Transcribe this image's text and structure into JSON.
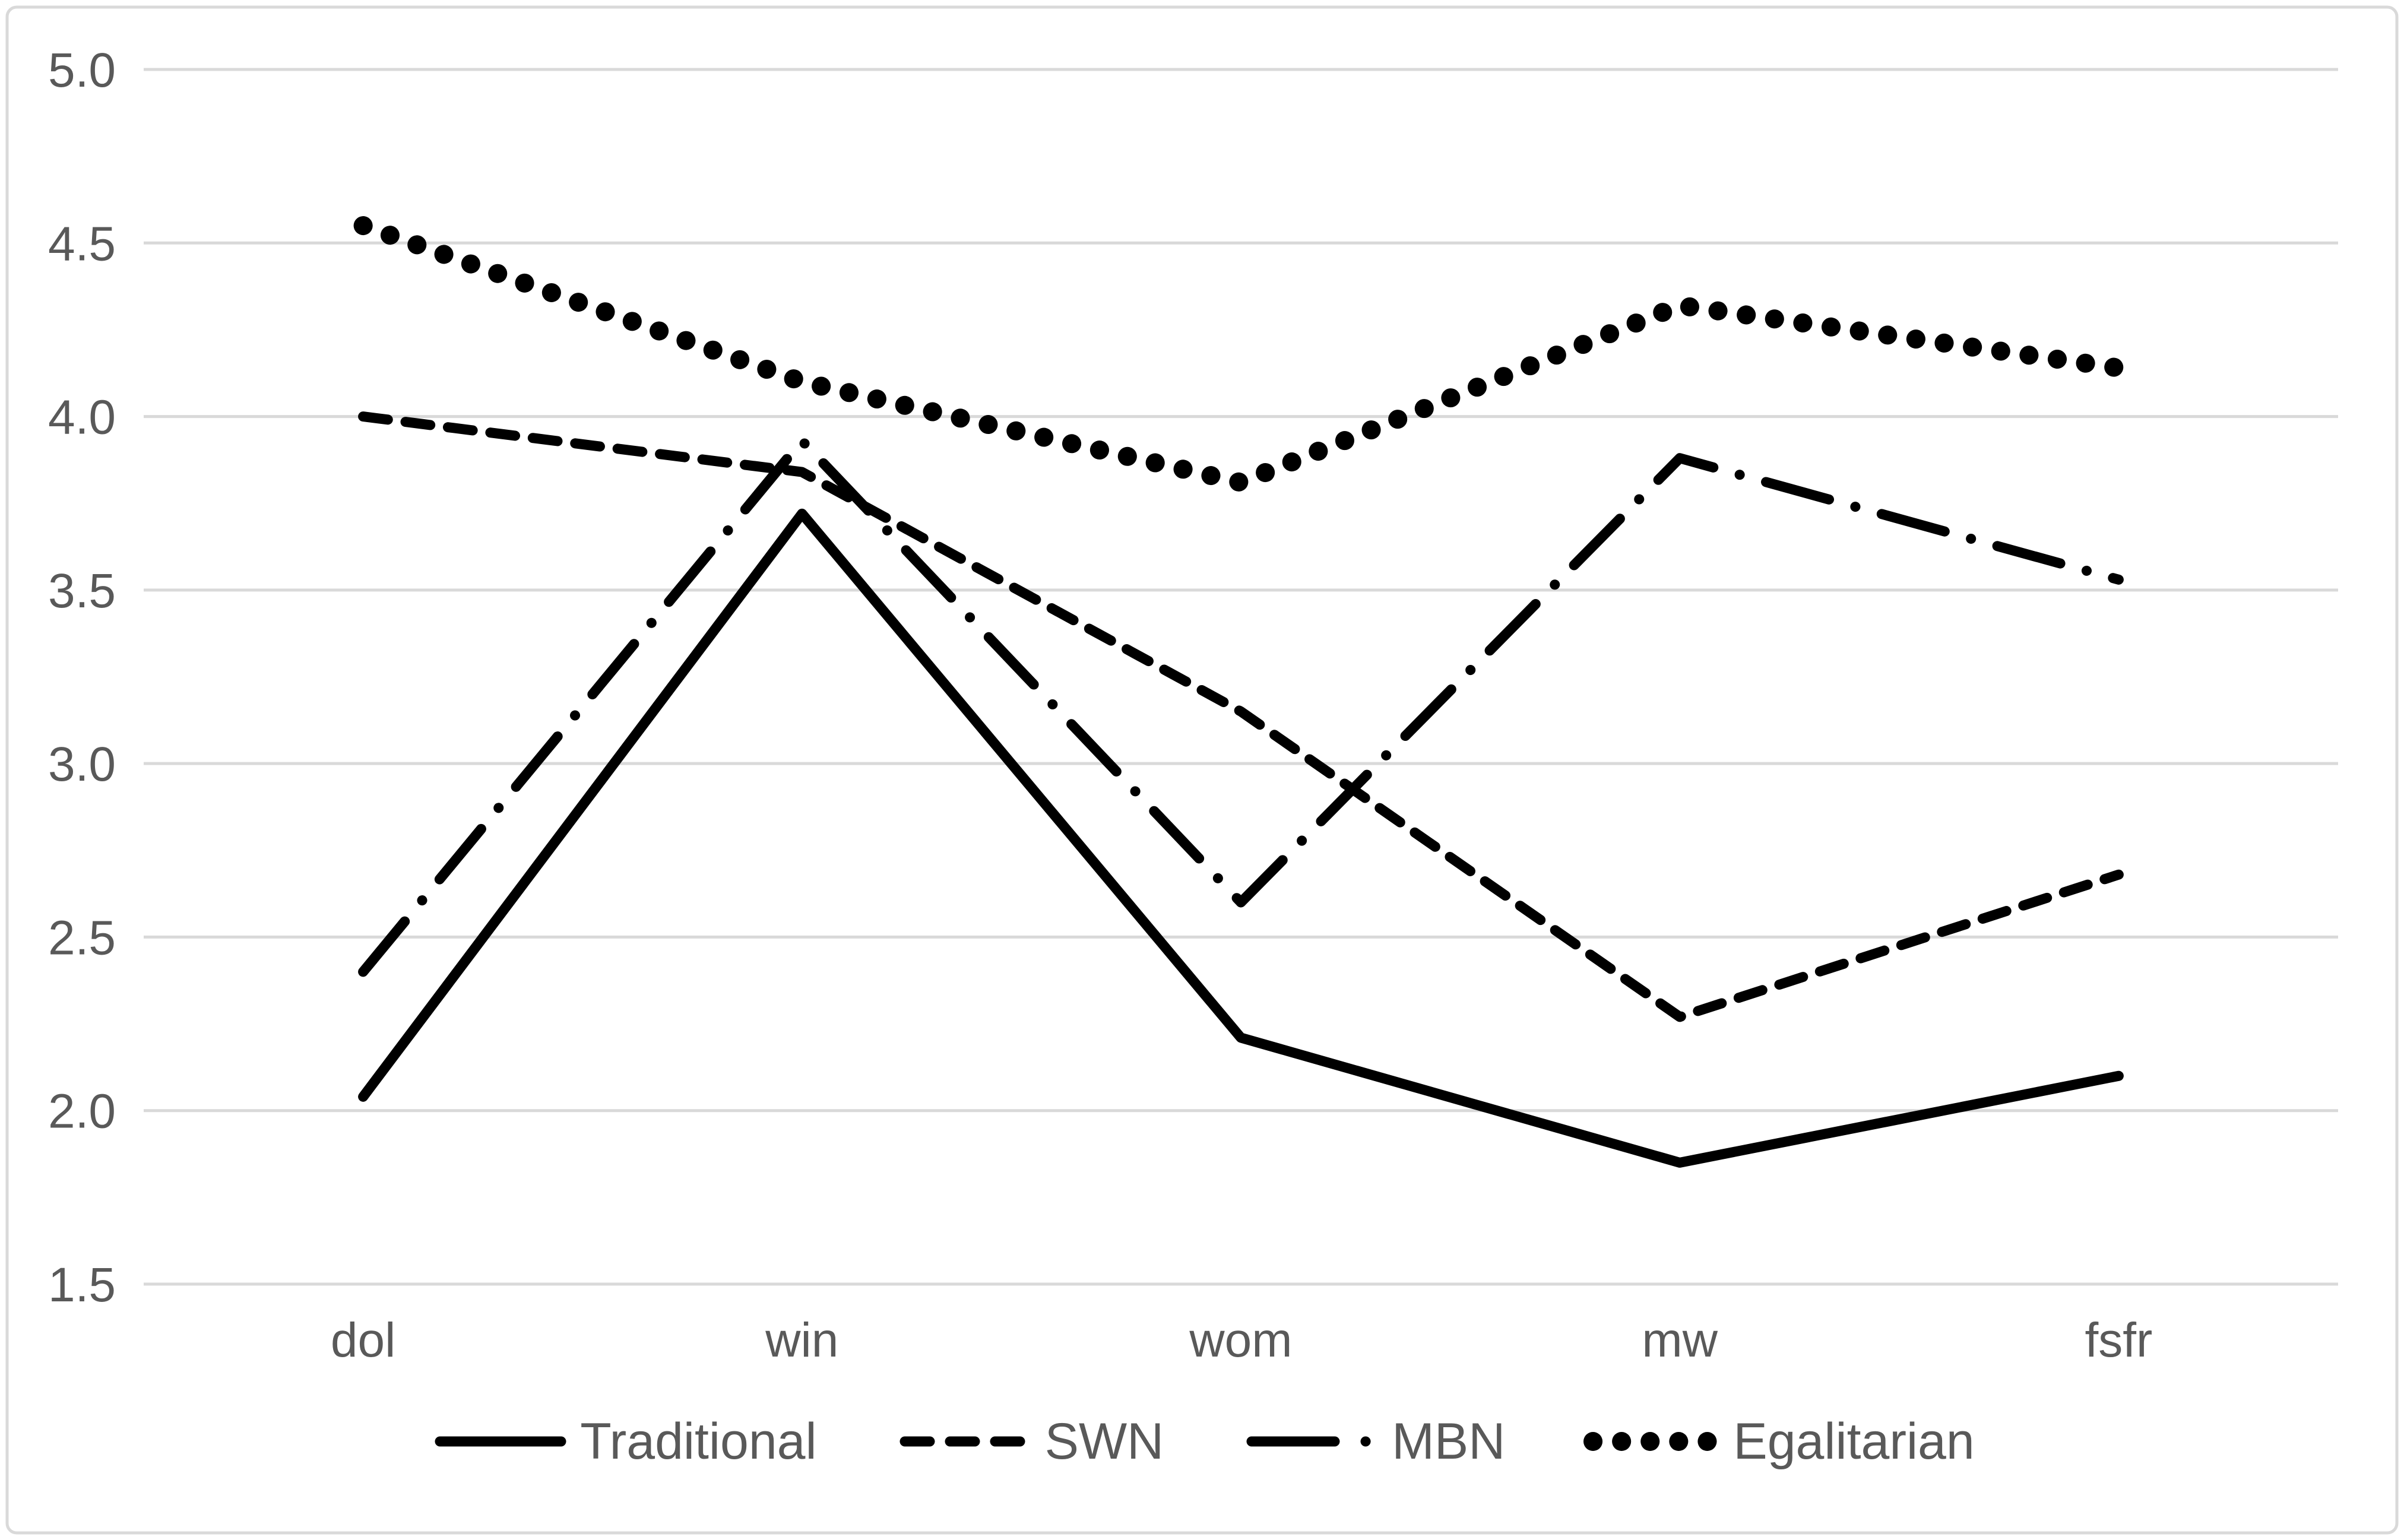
{
  "chart_data": {
    "type": "line",
    "title": "",
    "xlabel": "",
    "ylabel": "",
    "categories": [
      "dol",
      "win",
      "wom",
      "mw",
      "fsfr"
    ],
    "series": [
      {
        "name": "Traditional",
        "line_style": "solid",
        "values": [
          2.04,
          3.72,
          2.21,
          1.85,
          2.1
        ]
      },
      {
        "name": "SWN",
        "line_style": "dashed",
        "values": [
          4.0,
          3.84,
          3.15,
          2.27,
          2.68
        ]
      },
      {
        "name": "MBN",
        "line_style": "dash-dot",
        "values": [
          2.4,
          3.93,
          2.6,
          3.88,
          3.53
        ]
      },
      {
        "name": "Egalitarian",
        "line_style": "dotted",
        "values": [
          4.55,
          4.1,
          3.81,
          4.32,
          4.14
        ]
      }
    ],
    "ylim": [
      1.5,
      5.0
    ],
    "y_tick_step": 0.5,
    "y_tick_labels": [
      "5.0",
      "4.5",
      "4.0",
      "3.5",
      "3.0",
      "2.5",
      "2.0",
      "1.5"
    ],
    "grid": "horizontal",
    "legend_position": "bottom"
  },
  "colors": {
    "series_line": "#000000",
    "gridline": "#d9d9d9",
    "frame_border": "#d9d9d9",
    "axis_label": "#595959",
    "background": "#ffffff"
  }
}
